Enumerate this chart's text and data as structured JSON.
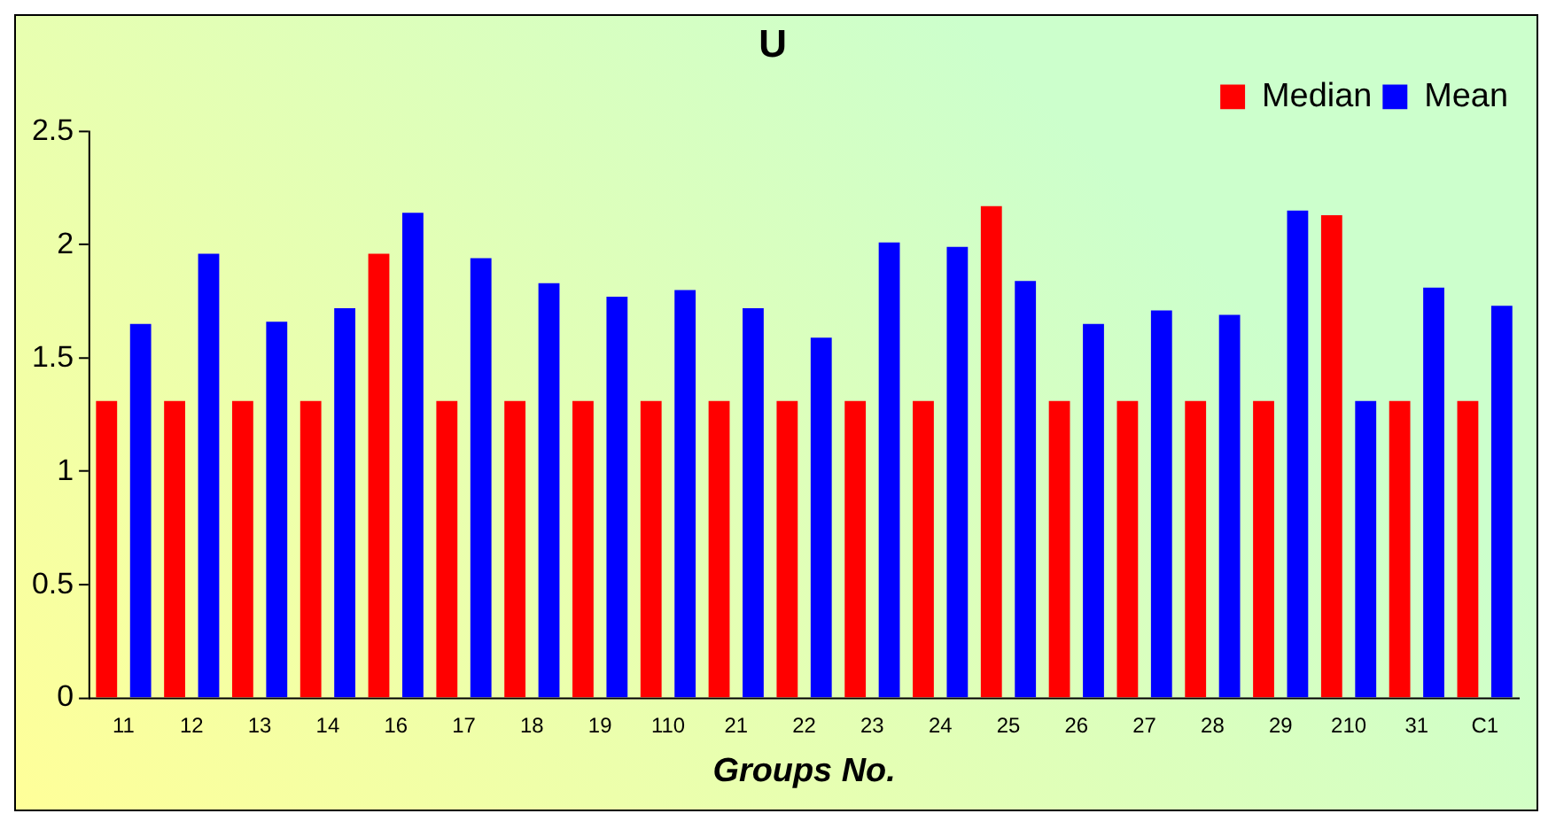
{
  "chart_data": {
    "type": "bar",
    "title": "U",
    "xlabel": "Groups No.",
    "categories": [
      "11",
      "12",
      "13",
      "14",
      "16",
      "17",
      "18",
      "19",
      "110",
      "21",
      "22",
      "23",
      "24",
      "25",
      "26",
      "27",
      "28",
      "29",
      "210",
      "31",
      "C1"
    ],
    "series": [
      {
        "name": "Median",
        "color": "#ff0000",
        "values": [
          1.31,
          1.31,
          1.31,
          1.31,
          1.96,
          1.31,
          1.31,
          1.31,
          1.31,
          1.31,
          1.31,
          1.31,
          1.31,
          2.17,
          1.31,
          1.31,
          1.31,
          1.31,
          2.13,
          1.31,
          1.31
        ]
      },
      {
        "name": "Mean",
        "color": "#0000ff",
        "values": [
          1.65,
          1.96,
          1.66,
          1.72,
          2.14,
          1.94,
          1.83,
          1.77,
          1.8,
          1.72,
          1.59,
          2.01,
          1.99,
          1.84,
          1.65,
          1.71,
          1.69,
          2.15,
          1.31,
          1.81,
          1.73
        ]
      }
    ],
    "ylim": [
      0,
      2.5
    ],
    "yticks": [
      0,
      0.5,
      1,
      1.5,
      2,
      2.5
    ],
    "grid": false,
    "legend": "top right"
  }
}
